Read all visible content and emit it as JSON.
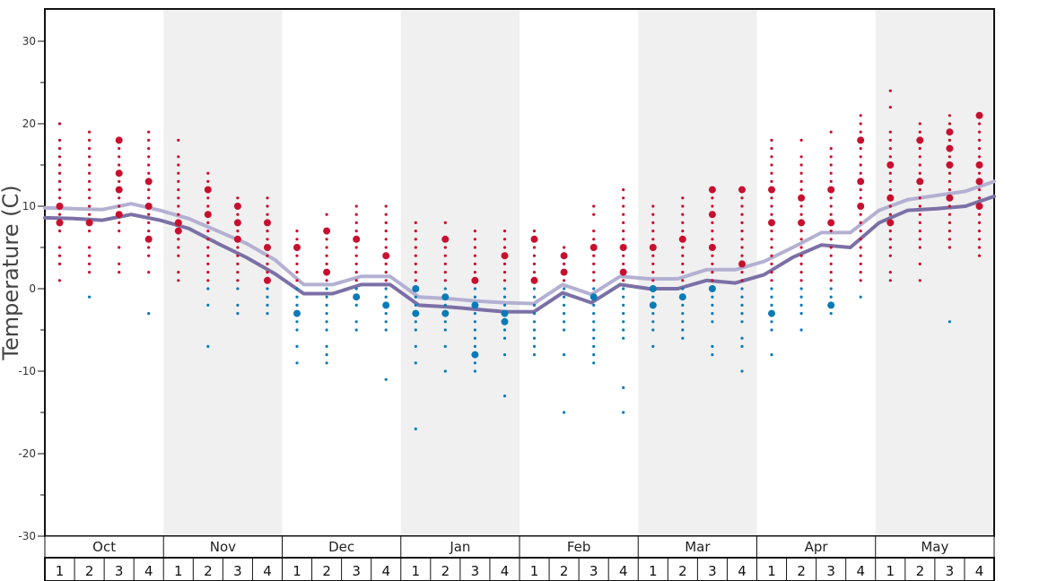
{
  "chart_data": {
    "type": "scatter",
    "ylabel": "Temperature (C)",
    "ylim": [
      -30,
      35
    ],
    "yticks": [
      -30,
      -20,
      -10,
      0,
      10,
      20,
      30
    ],
    "months": [
      "Oct",
      "Nov",
      "Dec",
      "Jan",
      "Feb",
      "Mar",
      "Apr",
      "May"
    ],
    "weeks": [
      "1",
      "2",
      "3",
      "4"
    ],
    "shaded_months": [
      "Nov",
      "Jan",
      "Mar",
      "May"
    ],
    "colors": {
      "above_zero": "#c8102e",
      "below_zero": "#0a7bb8",
      "light_line": "#b3b0d2",
      "dark_line": "#7b70a6",
      "shade": "#f0f0f0"
    },
    "series": [
      {
        "style": "light",
        "values": [
          9.8,
          9.7,
          9.6,
          10.3,
          9.5,
          8.5,
          7.0,
          5.5,
          3.5,
          0.5,
          0.5,
          1.5,
          1.5,
          -1.0,
          -1.2,
          -1.5,
          -1.7,
          -1.8,
          0.5,
          -0.7,
          1.5,
          1.2,
          1.2,
          2.3,
          2.3,
          3.3,
          5.0,
          6.8,
          6.8,
          9.5,
          10.8,
          11.3,
          11.8,
          13.0
        ]
      },
      {
        "style": "dark",
        "values": [
          8.6,
          8.5,
          8.3,
          9.0,
          8.3,
          7.3,
          5.5,
          3.8,
          1.8,
          -0.6,
          -0.6,
          0.5,
          0.5,
          -2.0,
          -2.2,
          -2.5,
          -2.8,
          -2.8,
          -0.5,
          -1.7,
          0.5,
          0.0,
          0.0,
          1.0,
          0.7,
          1.7,
          3.8,
          5.3,
          5.0,
          8.0,
          9.5,
          9.7,
          10.0,
          11.2
        ]
      }
    ],
    "observations": [
      {
        "month": 0,
        "week": 0,
        "values": [
          20,
          18,
          17,
          16,
          15,
          14,
          13,
          12,
          11,
          10,
          9,
          8,
          7,
          5,
          4,
          3,
          1
        ],
        "big": [
          10,
          8
        ]
      },
      {
        "month": 0,
        "week": 1,
        "values": [
          19,
          18,
          17,
          16,
          15,
          14,
          13,
          12,
          11,
          10,
          9,
          8,
          7,
          5,
          4,
          3,
          2,
          -1
        ],
        "big": [
          8
        ]
      },
      {
        "month": 0,
        "week": 2,
        "values": [
          18,
          17,
          16,
          15,
          14,
          13,
          12,
          11,
          10,
          9,
          8,
          7,
          5,
          3,
          2
        ],
        "big": [
          18,
          14,
          12,
          9
        ]
      },
      {
        "month": 0,
        "week": 3,
        "values": [
          19,
          18,
          17,
          16,
          15,
          14,
          13,
          12,
          11,
          10,
          9,
          8,
          7,
          6,
          5,
          4,
          2,
          -3
        ],
        "big": [
          13,
          10,
          6
        ]
      },
      {
        "month": 1,
        "week": 0,
        "values": [
          18,
          16,
          15,
          14,
          13,
          12,
          11,
          10,
          9,
          8,
          7,
          6,
          5,
          4,
          2,
          1
        ],
        "big": [
          8,
          7
        ]
      },
      {
        "month": 1,
        "week": 1,
        "values": [
          14,
          13,
          12,
          11,
          10,
          9,
          8,
          7,
          6,
          5,
          4,
          3,
          2,
          1,
          0,
          -2,
          -7
        ],
        "big": [
          12,
          9
        ]
      },
      {
        "month": 1,
        "week": 2,
        "values": [
          11,
          10,
          9,
          8,
          7,
          6,
          5,
          4,
          3,
          2,
          1,
          0,
          -2,
          -3
        ],
        "big": [
          10,
          8,
          6
        ]
      },
      {
        "month": 1,
        "week": 3,
        "values": [
          11,
          10,
          9,
          8,
          7,
          6,
          5,
          4,
          3,
          2,
          1,
          0,
          -1,
          -2,
          -3
        ],
        "big": [
          8,
          5,
          1
        ]
      },
      {
        "month": 2,
        "week": 0,
        "values": [
          7,
          6,
          5,
          4,
          3,
          2,
          1,
          0,
          -1,
          -2,
          -3,
          -4,
          -5,
          -7,
          -9
        ],
        "big": [
          5,
          -3
        ]
      },
      {
        "month": 2,
        "week": 1,
        "values": [
          9,
          7,
          6,
          5,
          4,
          3,
          2,
          1,
          0,
          -1,
          -2,
          -3,
          -4,
          -5,
          -7,
          -8,
          -9
        ],
        "big": [
          7,
          2
        ]
      },
      {
        "month": 2,
        "week": 2,
        "values": [
          10,
          9,
          8,
          7,
          6,
          5,
          4,
          3,
          2,
          1,
          0,
          -1,
          -2,
          -4,
          -5
        ],
        "big": [
          6,
          -1
        ]
      },
      {
        "month": 2,
        "week": 3,
        "values": [
          10,
          9,
          8,
          7,
          6,
          5,
          4,
          3,
          2,
          1,
          0,
          -1,
          -2,
          -3,
          -4,
          -5,
          -11
        ],
        "big": [
          4,
          -2
        ]
      },
      {
        "month": 3,
        "week": 0,
        "values": [
          8,
          7,
          6,
          5,
          4,
          3,
          2,
          1,
          0,
          -1,
          -2,
          -3,
          -4,
          -5,
          -7,
          -9,
          -17
        ],
        "big": [
          0,
          -3
        ]
      },
      {
        "month": 3,
        "week": 1,
        "values": [
          8,
          6,
          5,
          4,
          3,
          2,
          1,
          0,
          -1,
          -2,
          -3,
          -4,
          -5,
          -7,
          -10
        ],
        "big": [
          6,
          -1,
          -3
        ]
      },
      {
        "month": 3,
        "week": 2,
        "values": [
          7,
          6,
          5,
          4,
          3,
          2,
          1,
          0,
          -1,
          -2,
          -3,
          -4,
          -5,
          -6,
          -7,
          -8,
          -9,
          -10
        ],
        "big": [
          1,
          -2,
          -8
        ]
      },
      {
        "month": 3,
        "week": 3,
        "values": [
          7,
          6,
          5,
          4,
          3,
          2,
          1,
          0,
          -1,
          -2,
          -3,
          -4,
          -5,
          -6,
          -8,
          -13
        ],
        "big": [
          4,
          -3,
          -4
        ]
      },
      {
        "month": 4,
        "week": 0,
        "values": [
          7,
          6,
          5,
          4,
          3,
          2,
          1,
          0,
          -1,
          -2,
          -3,
          -4,
          -5,
          -6,
          -7,
          -8
        ],
        "big": [
          6,
          1
        ]
      },
      {
        "month": 4,
        "week": 1,
        "values": [
          5,
          4,
          3,
          2,
          1,
          0,
          -1,
          -2,
          -3,
          -4,
          -5,
          -8,
          -15
        ],
        "big": [
          4,
          2
        ]
      },
      {
        "month": 4,
        "week": 2,
        "values": [
          10,
          9,
          7,
          6,
          5,
          4,
          3,
          2,
          1,
          0,
          -1,
          -2,
          -3,
          -4,
          -5,
          -6,
          -7,
          -8,
          -9
        ],
        "big": [
          5,
          -1
        ]
      },
      {
        "month": 4,
        "week": 3,
        "values": [
          12,
          11,
          10,
          9,
          8,
          7,
          6,
          5,
          4,
          3,
          2,
          1,
          0,
          -1,
          -2,
          -3,
          -4,
          -5,
          -6,
          -12,
          -15
        ],
        "big": [
          5,
          2
        ]
      },
      {
        "month": 5,
        "week": 0,
        "values": [
          10,
          9,
          8,
          7,
          6,
          5,
          4,
          3,
          2,
          1,
          0,
          -1,
          -2,
          -3,
          -4,
          -5,
          -7
        ],
        "big": [
          5,
          0,
          -2
        ]
      },
      {
        "month": 5,
        "week": 1,
        "values": [
          11,
          10,
          9,
          8,
          7,
          6,
          5,
          4,
          3,
          2,
          1,
          0,
          -1,
          -2,
          -3,
          -4,
          -5,
          -6
        ],
        "big": [
          6,
          -1
        ]
      },
      {
        "month": 5,
        "week": 2,
        "values": [
          12,
          11,
          10,
          9,
          8,
          7,
          6,
          5,
          4,
          3,
          2,
          1,
          0,
          -1,
          -2,
          -3,
          -4,
          -7,
          -8
        ],
        "big": [
          12,
          9,
          5,
          0
        ]
      },
      {
        "month": 5,
        "week": 3,
        "values": [
          12,
          11,
          10,
          9,
          8,
          7,
          6,
          5,
          4,
          3,
          2,
          1,
          0,
          -1,
          -2,
          -3,
          -4,
          -6,
          -7,
          -10
        ],
        "big": [
          12,
          3
        ]
      },
      {
        "month": 6,
        "week": 0,
        "values": [
          18,
          17,
          16,
          15,
          14,
          13,
          12,
          11,
          10,
          9,
          8,
          7,
          6,
          5,
          4,
          3,
          2,
          1,
          0,
          -1,
          -2,
          -3,
          -4,
          -5,
          -8
        ],
        "big": [
          12,
          8,
          -3
        ]
      },
      {
        "month": 6,
        "week": 1,
        "values": [
          18,
          16,
          15,
          14,
          13,
          12,
          11,
          10,
          9,
          8,
          7,
          6,
          5,
          4,
          3,
          2,
          1,
          0,
          -1,
          -2,
          -3,
          -5
        ],
        "big": [
          11,
          8
        ]
      },
      {
        "month": 6,
        "week": 2,
        "values": [
          19,
          17,
          16,
          15,
          14,
          13,
          12,
          11,
          10,
          9,
          8,
          7,
          6,
          5,
          4,
          3,
          2,
          1,
          0,
          -1,
          -2,
          -3
        ],
        "big": [
          12,
          8,
          -2
        ]
      },
      {
        "month": 6,
        "week": 3,
        "values": [
          21,
          20,
          19,
          18,
          17,
          16,
          15,
          14,
          13,
          12,
          11,
          10,
          9,
          8,
          7,
          6,
          5,
          4,
          3,
          2,
          1,
          -1
        ],
        "big": [
          18,
          13,
          10
        ]
      },
      {
        "month": 7,
        "week": 0,
        "values": [
          24,
          22,
          19,
          18,
          17,
          16,
          15,
          14,
          13,
          12,
          11,
          10,
          9,
          8,
          7,
          6,
          5,
          4,
          2,
          1
        ],
        "big": [
          15,
          11,
          8
        ]
      },
      {
        "month": 7,
        "week": 1,
        "values": [
          20,
          19,
          18,
          17,
          16,
          15,
          14,
          13,
          12,
          11,
          10,
          9,
          8,
          7,
          6,
          5,
          3,
          1
        ],
        "big": [
          18,
          13
        ]
      },
      {
        "month": 7,
        "week": 2,
        "values": [
          21,
          20,
          19,
          18,
          17,
          16,
          15,
          14,
          13,
          12,
          11,
          10,
          9,
          8,
          7,
          6,
          5,
          -4
        ],
        "big": [
          19,
          17,
          15,
          11
        ]
      },
      {
        "month": 7,
        "week": 3,
        "values": [
          21,
          20,
          19,
          18,
          17,
          16,
          15,
          14,
          13,
          12,
          11,
          10,
          9,
          8,
          7,
          6,
          5,
          4
        ],
        "big": [
          21,
          15,
          13,
          10
        ]
      }
    ]
  }
}
